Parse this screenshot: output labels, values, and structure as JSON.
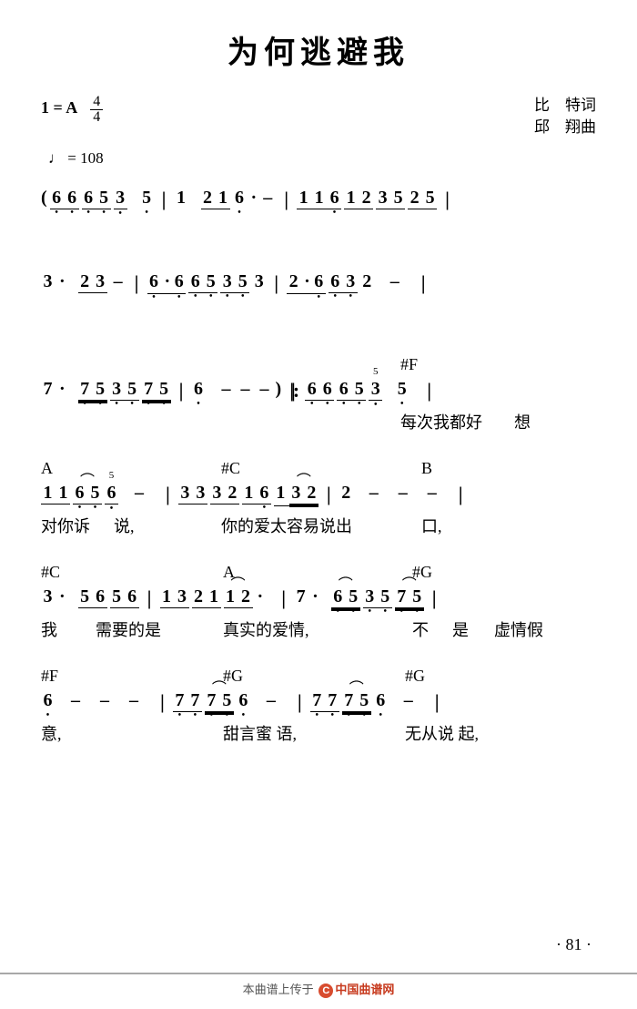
{
  "title": "为何逃避我",
  "keySignature": "1 = A",
  "timeSig": {
    "num": "4",
    "den": "4"
  },
  "tempo": "♩ = 108",
  "credits": {
    "lyricist": "比　特词",
    "composer": "邱　翔曲"
  },
  "lines": [
    {
      "chords": [],
      "notes_html": "( <span class='group'><span class='note udot'>6</span><span class='note udot'>6</span></span> <span class='group'><span class='note udot'>6</span><span class='note udot'>5</span></span><span class='note udot uline'>3</span> <span class='spacer'></span><span class='note udot'>5</span> <span class='bar'>|</span> <span class='note'>1</span> <span class='spacer'></span><span class='group'><span class='note'>2</span><span class='note'>1</span></span><span class='note udot'>6</span><span class='dot'>·</span> <span class='dash'>–</span> <span class='bar'>|</span> <span class='group'><span class='note'>1</span><span class='note'>1</span><span class='note udot'>6</span></span> <span class='group'><span class='note'>1</span><span class='note'>2</span></span> <span class='group'><span class='note'>3</span><span class='note'>5</span></span> <span class='group'><span class='note'>2</span><span class='note'>5</span></span> <span class='bar'>|</span>",
      "lyrics": ""
    },
    {
      "chords": [],
      "notes_html": "<span class='note'>3</span><span class='dot'>·</span> <span class='spacer'></span><span class='group'><span class='note'>2</span><span class='note'>3</span></span> <span class='dash'>–</span> <span class='bar'>|</span> <span class='group'><span class='note udot'>6</span><span class='dot'>·</span><span class='note udot'>6</span></span> <span class='group'><span class='note udot'>6</span><span class='note udot'>5</span></span><span class='group'><span class='note udot'>3</span><span class='note udot'>5</span></span><span class='note'>3</span> <span class='bar'>|</span> <span class='group'><span class='note'>2</span><span class='dot'>·</span><span class='note udot'>6</span></span> <span class='group'><span class='note udot'>6</span><span class='note udot'>3</span></span><span class='note'>2</span> <span class='spacer'></span><span class='dash'>–</span> <span class='spacer'></span><span class='bar'>|</span>",
      "lyrics": ""
    },
    {
      "chords": [
        {
          "pos": 395,
          "label": "#F"
        }
      ],
      "notes_html": "<span class='note'>7</span><span class='dot'>·</span> <span class='spacer'></span><span class='group2'><span class='note udot'>7</span><span class='note udot'>5</span></span> <span class='group'><span class='note udot'>3</span><span class='note udot'>5</span></span> <span class='group2'><span class='note udot'>7</span><span class='note udot'>5</span></span> <span class='bar'>|</span> <span class='note udot'>6</span> <span class='spacer'></span><span class='dash'>–</span> <span class='dash'>–</span> <span class='dash'>–</span> ) <span class='bar dbar'>||:</span> <span class='group'><span class='note udot'>6</span><span class='note udot'>6</span></span> <span class='group'><span class='note udot'>6</span><span class='note udot'>5</span></span><span class='tuplet' data-num='5'><span class='note udot uline'>3</span></span> <span class='spacer'></span><span class='note udot'>5</span> <span class='spacer'></span><span class='bar'>|</span>",
      "lyrics_items": [
        {
          "pos": 395,
          "text": "每次我都好"
        },
        {
          "pos": 520,
          "text": "想"
        }
      ]
    },
    {
      "chords": [
        {
          "pos": 0,
          "label": "A"
        },
        {
          "pos": 198,
          "label": "#C"
        },
        {
          "pos": 418,
          "label": "B"
        }
      ],
      "notes_html": "<span class='group'><span class='note'>1</span><span class='note'>1</span></span> <span class='tie'><span class='group'><span class='note udot'>6</span><span class='note udot'>5</span></span></span><span class='tuplet' data-num='5'><span class='note udot uline'>6</span></span> <span class='spacer'></span><span class='dash'>–</span> <span class='spacer'></span><span class='bar'>|</span> <span class='group'><span class='note'>3</span><span class='note'>3</span></span> <span class='group'><span class='note'>3</span><span class='note'>2</span></span><span class='group'><span class='note'>1</span><span class='note udot'>6</span></span> <span class='group'><span class='note'>1</span><span class='tie'><span class='group2'><span class='note'>3</span><span class='note'>2</span></span></span></span> <span class='bar'>|</span> <span class='note'>2</span> <span class='spacer'></span><span class='dash'>–</span> <span class='spacer'></span><span class='dash'>–</span> <span class='spacer'></span><span class='dash'>–</span> <span class='spacer'></span><span class='bar'>|</span>",
      "lyrics_items": [
        {
          "pos": 0,
          "text": "对你诉"
        },
        {
          "pos": 80,
          "text": "说,"
        },
        {
          "pos": 198,
          "text": "你的爱太容易说出"
        },
        {
          "pos": 418,
          "text": "口,"
        }
      ]
    },
    {
      "chords": [
        {
          "pos": 0,
          "label": "#C"
        },
        {
          "pos": 200,
          "label": "A"
        },
        {
          "pos": 408,
          "label": "#G"
        }
      ],
      "notes_html": "<span class='note'>3</span><span class='dot'>·</span> <span class='spacer'></span><span class='group'><span class='note'>5</span><span class='note'>6</span></span><span class='group'><span class='note'>5</span><span class='note'>6</span></span> <span class='bar'>|</span> <span class='group'><span class='note'>1</span><span class='note'>3</span></span><span class='group'><span class='note'>2</span><span class='note'>1</span></span><span class='tie'><span class='group'><span class='note'>1</span><span class='note'>2</span></span></span><span class='dot'>·</span> <span class='spacer'></span><span class='bar'>|</span> <span class='note'>7</span><span class='dot'>·</span> <span class='spacer'></span><span class='tie'><span class='group2'><span class='note udot'>6</span><span class='note udot'>5</span></span></span> <span class='group'><span class='note udot'>3</span><span class='note udot'>5</span></span> <span class='tie'><span class='group2'><span class='note udot'>7</span><span class='note udot'>5</span></span></span> <span class='bar'>|</span>",
      "lyrics_items": [
        {
          "pos": 0,
          "text": "我"
        },
        {
          "pos": 60,
          "text": "需要的是"
        },
        {
          "pos": 200,
          "text": "真实的爱情,"
        },
        {
          "pos": 408,
          "text": "不"
        },
        {
          "pos": 452,
          "text": "是"
        },
        {
          "pos": 498,
          "text": "虚情假"
        }
      ]
    },
    {
      "chords": [
        {
          "pos": 0,
          "label": "#F"
        },
        {
          "pos": 200,
          "label": "#G"
        },
        {
          "pos": 400,
          "label": "#G"
        }
      ],
      "notes_html": "<span class='note udot'>6</span> <span class='spacer'></span><span class='dash'>–</span> <span class='spacer'></span><span class='dash'>–</span> <span class='spacer'></span><span class='dash'>–</span> <span class='spacer'></span><span class='bar'>|</span> <span class='group'><span class='note udot'>7</span><span class='note udot'>7</span></span> <span class='tie'><span class='group2'><span class='note udot'>7</span><span class='note udot'>5</span></span></span><span class='note udot'>6</span> <span class='spacer'></span><span class='dash'>–</span> <span class='spacer'></span><span class='bar'>|</span> <span class='group'><span class='note udot'>7</span><span class='note udot'>7</span></span> <span class='tie'><span class='group2'><span class='note udot'>7</span><span class='note udot'>5</span></span></span><span class='note udot'>6</span> <span class='spacer'></span><span class='dash'>–</span> <span class='spacer'></span><span class='bar'>|</span>",
      "lyrics_items": [
        {
          "pos": 0,
          "text": "意,"
        },
        {
          "pos": 200,
          "text": "甜言蜜 语,"
        },
        {
          "pos": 400,
          "text": "无从说 起,"
        }
      ]
    }
  ],
  "pageNum": "· 81 ·",
  "footer": {
    "prefix": "本曲谱上传于",
    "logo": "C",
    "site": "中国曲谱网"
  }
}
